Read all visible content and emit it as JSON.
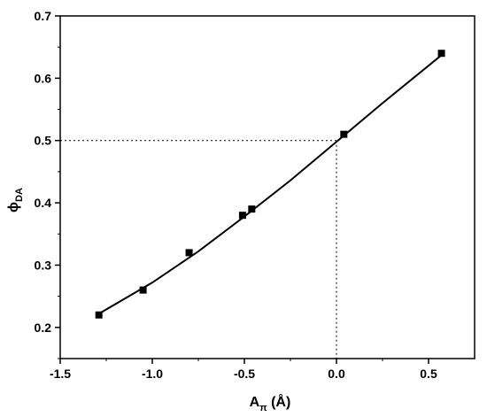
{
  "chart_data": {
    "type": "scatter",
    "xlabel": "A",
    "xlabel_sub": "π",
    "xlabel_unit": " (Å)",
    "ylabel": "ϕ",
    "ylabel_sub": "DA",
    "xlim": [
      -1.5,
      0.75
    ],
    "ylim": [
      0.15,
      0.7
    ],
    "xticks": [
      -1.5,
      -1.0,
      -0.5,
      0.0,
      0.5
    ],
    "xtick_labels": [
      "-1.5",
      "-1.0",
      "-0.5",
      "0.0",
      "0.5"
    ],
    "yticks": [
      0.2,
      0.3,
      0.4,
      0.5,
      0.6,
      0.7
    ],
    "ytick_labels": [
      "0.2",
      "0.3",
      "0.4",
      "0.5",
      "0.6",
      "0.7"
    ],
    "grid": false,
    "marker": "square",
    "marker_color": "#000000",
    "line_color": "#000000",
    "series": [
      {
        "x": [
          -1.29,
          -1.05,
          -0.8,
          -0.51,
          -0.46,
          0.04,
          0.57
        ],
        "y": [
          0.22,
          0.26,
          0.32,
          0.38,
          0.39,
          0.51,
          0.64
        ]
      }
    ],
    "fit_curve": {
      "x": [
        -1.29,
        -1.0,
        -0.75,
        -0.5,
        -0.25,
        0.0,
        0.25,
        0.57
      ],
      "y": [
        0.222,
        0.272,
        0.322,
        0.378,
        0.436,
        0.498,
        0.56,
        0.637
      ]
    },
    "reference_lines": {
      "y": 0.5,
      "x": 0.0,
      "style": "dotted"
    }
  }
}
